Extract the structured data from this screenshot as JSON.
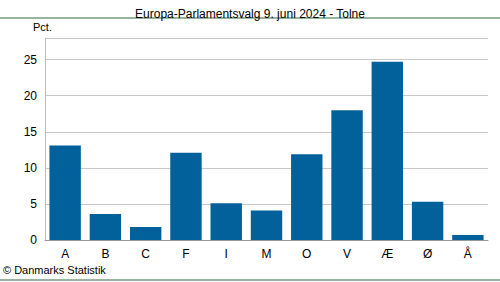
{
  "chart_data": {
    "type": "bar",
    "title": "Europa-Parlamentsvalg 9. juni 2024 - Tolne",
    "y_label": "Pct.",
    "source": "© Danmarks Statistik",
    "categories": [
      "A",
      "B",
      "C",
      "F",
      "I",
      "M",
      "O",
      "V",
      "Æ",
      "Ø",
      "Å"
    ],
    "values": [
      13.1,
      3.6,
      1.8,
      12.1,
      5.1,
      4.1,
      11.9,
      18.0,
      24.7,
      5.3,
      0.7
    ],
    "color": "#02619a",
    "ylim": [
      0,
      28
    ],
    "yticks": [
      0,
      5,
      10,
      15,
      20,
      25
    ],
    "grid": true
  }
}
